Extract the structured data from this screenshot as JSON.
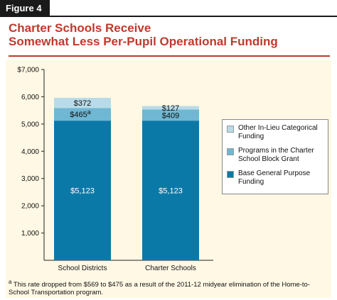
{
  "figure_label": "Figure 4",
  "title_line1": "Charter Schools Receive",
  "title_line2": "Somewhat Less Per-Pupil Operational Funding",
  "colors": {
    "base": "#0b79a8",
    "block_grant": "#6fb7d3",
    "in_lieu": "#b8dbe9",
    "title": "#c0392b",
    "panel": "#fff8e4"
  },
  "chart_data": {
    "type": "bar",
    "stacked": true,
    "categories": [
      "School Districts",
      "Charter Schools"
    ],
    "series": [
      {
        "name": "Base General Purpose Funding",
        "values": [
          5123,
          5123
        ],
        "labels": [
          "$5,123",
          "$5,123"
        ]
      },
      {
        "name": "Programs in the Charter School Block Grant",
        "values": [
          465,
          409
        ],
        "labels": [
          "$465",
          "$409"
        ]
      },
      {
        "name": "Other In-Lieu Categorical Funding",
        "values": [
          372,
          127
        ],
        "labels": [
          "$372",
          "$127"
        ]
      }
    ],
    "ylim": [
      0,
      7000
    ],
    "yticks": [
      1000,
      2000,
      3000,
      4000,
      5000,
      6000,
      7000
    ],
    "ytick_labels": [
      "1,000",
      "2,000",
      "3,000",
      "4,000",
      "5,000",
      "6,000",
      "$7,000"
    ],
    "annotation_marker": "a",
    "legend_position": "right",
    "grid": false
  },
  "footnote": {
    "marker": "a",
    "text": "This rate dropped from $569 to $475 as a result of the 2011-12 midyear elimination of the Home-to-School Transportation program."
  }
}
